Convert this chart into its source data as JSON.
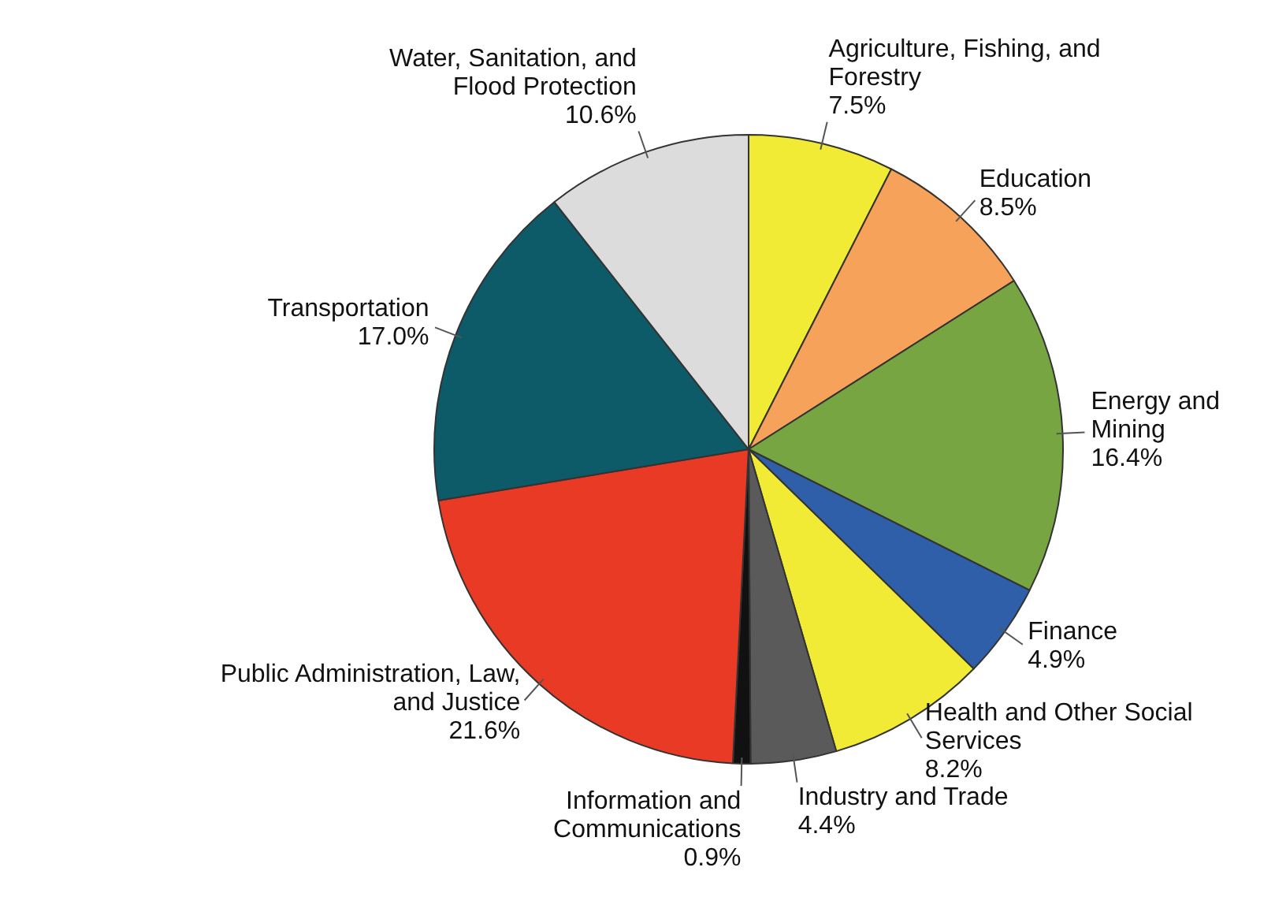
{
  "chart_data": {
    "type": "pie",
    "categories": [
      "Agriculture, Fishing, and Forestry",
      "Education",
      "Energy and Mining",
      "Finance",
      "Health and Other Social Services",
      "Industry and Trade",
      "Information and Communications",
      "Public Administration, Law, and Justice",
      "Transportation",
      "Water, Sanitation, and Flood Protection"
    ],
    "values": [
      7.5,
      8.5,
      16.4,
      4.9,
      8.2,
      4.4,
      0.9,
      21.6,
      17.0,
      10.6
    ],
    "value_labels": [
      "7.5%",
      "8.5%",
      "16.4%",
      "4.9%",
      "8.2%",
      "4.4%",
      "0.9%",
      "21.6%",
      "17.0%",
      "10.6%"
    ],
    "colors": [
      "#f2eb36",
      "#f7a25a",
      "#77a542",
      "#2e5fa8",
      "#f2eb36",
      "#5a5a5a",
      "#111111",
      "#e83a25",
      "#0d5a69",
      "#dcdcdc"
    ],
    "legend": false
  }
}
